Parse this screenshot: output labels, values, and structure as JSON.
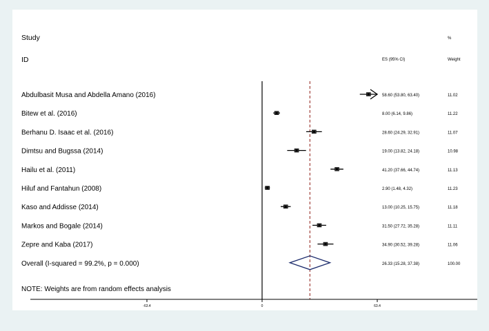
{
  "chart_data": {
    "type": "forest",
    "header": {
      "study": "Study",
      "id": "ID",
      "es": "ES (95% CI)",
      "weight_pct": "%",
      "weight": "Weight"
    },
    "studies": [
      {
        "name": "Abdulbasit Musa and Abdella Amano (2016)",
        "es": 58.6,
        "lo": 53.8,
        "hi": 63.4,
        "ci_text": "58.60 (53.80, 63.40)",
        "weight": "11.02",
        "arrow": true
      },
      {
        "name": "Bitew et al. (2016)",
        "es": 8.0,
        "lo": 6.14,
        "hi": 9.86,
        "ci_text": "8.00 (6.14, 9.86)",
        "weight": "11.22"
      },
      {
        "name": "Berhanu D. Isaac et al. (2016)",
        "es": 28.6,
        "lo": 24.29,
        "hi": 32.91,
        "ci_text": "28.60 (24.29, 32.91)",
        "weight": "11.07"
      },
      {
        "name": "Dimtsu and Bugssa (2014)",
        "es": 19.0,
        "lo": 13.82,
        "hi": 24.18,
        "ci_text": "19.00 (13.82, 24.18)",
        "weight": "10.98"
      },
      {
        "name": "Hailu et al. (2011)",
        "es": 41.2,
        "lo": 37.66,
        "hi": 44.74,
        "ci_text": "41.20 (37.66, 44.74)",
        "weight": "11.13"
      },
      {
        "name": "Hiluf and Fantahun (2008)",
        "es": 2.9,
        "lo": 1.48,
        "hi": 4.32,
        "ci_text": "2.90 (1.48, 4.32)",
        "weight": "11.23"
      },
      {
        "name": "Kaso and Addisse (2014)",
        "es": 13.0,
        "lo": 10.25,
        "hi": 15.75,
        "ci_text": "13.00 (10.25, 15.75)",
        "weight": "11.18"
      },
      {
        "name": "Markos and Bogale (2014)",
        "es": 31.5,
        "lo": 27.72,
        "hi": 35.28,
        "ci_text": "31.50 (27.72, 35.28)",
        "weight": "11.11"
      },
      {
        "name": "Zepre and Kaba (2017)",
        "es": 34.9,
        "lo": 30.52,
        "hi": 39.28,
        "ci_text": "34.90 (30.52, 39.28)",
        "weight": "11.06"
      }
    ],
    "overall": {
      "label": "Overall  (I-squared = 99.2%, p = 0.000)",
      "es": 26.33,
      "lo": 15.28,
      "hi": 37.38,
      "ci_text": "26.33 (15.28, 37.38)",
      "weight": "100.00"
    },
    "note": "NOTE: Weights are from random effects analysis",
    "x_ticks": [
      {
        "value": -63.4,
        "label": "-63.4"
      },
      {
        "value": 0,
        "label": "0"
      },
      {
        "value": 63.4,
        "label": "63.4"
      }
    ],
    "xlim": [
      -63.4,
      63.4
    ],
    "null_line": 0,
    "pooled_line": 26.33,
    "colors": {
      "background": "#eaf2f3",
      "pooled_line": "#a0403a",
      "diamond": "#1b2a6b",
      "point": "#000000"
    }
  }
}
